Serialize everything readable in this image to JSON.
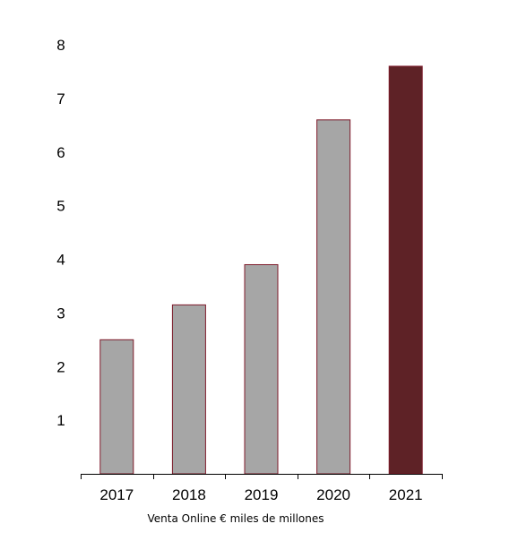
{
  "chart_data": {
    "type": "bar",
    "categories": [
      "2017",
      "2018",
      "2019",
      "2020",
      "2021"
    ],
    "values": [
      2.5,
      3.15,
      3.9,
      6.6,
      7.6
    ],
    "xlabel": "Venta Online € miles de millones",
    "ylabel": "",
    "title": "",
    "ylim": [
      0,
      8
    ],
    "yticks": [
      "1",
      "2",
      "3",
      "4",
      "5",
      "6",
      "7",
      "8"
    ],
    "grid": false,
    "legend": "none",
    "colors": {
      "bar": "#a6a6a6",
      "bar_edge": "#7d1a2a",
      "highlight": "#5e2226",
      "axis": "#000000"
    },
    "highlight_category": "2021"
  }
}
